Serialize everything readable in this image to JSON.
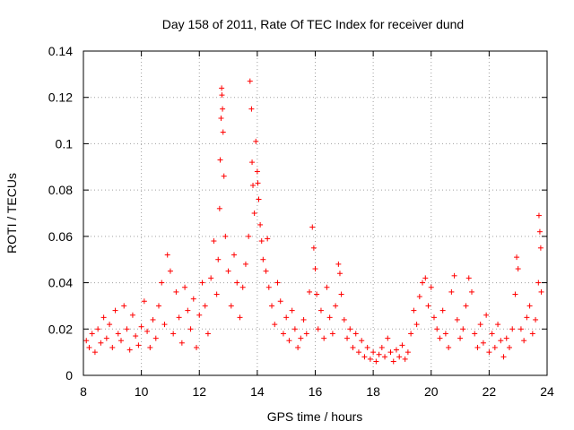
{
  "chart_data": {
    "type": "scatter",
    "title": "Day 158 of 2011, Rate Of TEC Index for receiver dund",
    "xlabel": "GPS time / hours",
    "ylabel": "ROTI / TECUs",
    "xlim": [
      8,
      24
    ],
    "ylim": [
      0,
      0.14
    ],
    "x_ticks": [
      8,
      10,
      12,
      14,
      16,
      18,
      20,
      22,
      24
    ],
    "x_tick_labels": [
      "8",
      "10",
      "12",
      "14",
      "16",
      "18",
      "20",
      "22",
      "24"
    ],
    "y_ticks": [
      0,
      0.02,
      0.04,
      0.06,
      0.08,
      0.1,
      0.12,
      0.14
    ],
    "y_tick_labels": [
      "0",
      "0.02",
      "0.04",
      "0.06",
      "0.08",
      "0.1",
      "0.12",
      "0.14"
    ],
    "grid": true,
    "marker": "plus",
    "color": "#ff0000",
    "series": [
      {
        "name": "ROTI",
        "points": [
          [
            8.1,
            0.015
          ],
          [
            8.2,
            0.012
          ],
          [
            8.3,
            0.018
          ],
          [
            8.4,
            0.01
          ],
          [
            8.5,
            0.02
          ],
          [
            8.6,
            0.014
          ],
          [
            8.7,
            0.025
          ],
          [
            8.8,
            0.016
          ],
          [
            8.9,
            0.022
          ],
          [
            9.0,
            0.012
          ],
          [
            9.1,
            0.028
          ],
          [
            9.2,
            0.018
          ],
          [
            9.3,
            0.015
          ],
          [
            9.4,
            0.03
          ],
          [
            9.5,
            0.02
          ],
          [
            9.6,
            0.011
          ],
          [
            9.7,
            0.026
          ],
          [
            9.8,
            0.017
          ],
          [
            9.9,
            0.013
          ],
          [
            10.0,
            0.021
          ],
          [
            10.1,
            0.032
          ],
          [
            10.2,
            0.019
          ],
          [
            10.3,
            0.012
          ],
          [
            10.4,
            0.024
          ],
          [
            10.5,
            0.016
          ],
          [
            10.6,
            0.03
          ],
          [
            10.7,
            0.04
          ],
          [
            10.8,
            0.022
          ],
          [
            10.9,
            0.052
          ],
          [
            11.0,
            0.045
          ],
          [
            11.1,
            0.018
          ],
          [
            11.2,
            0.036
          ],
          [
            11.3,
            0.025
          ],
          [
            11.4,
            0.014
          ],
          [
            11.5,
            0.038
          ],
          [
            11.6,
            0.028
          ],
          [
            11.7,
            0.02
          ],
          [
            11.8,
            0.033
          ],
          [
            11.9,
            0.012
          ],
          [
            12.0,
            0.026
          ],
          [
            12.1,
            0.04
          ],
          [
            12.2,
            0.03
          ],
          [
            12.3,
            0.018
          ],
          [
            12.4,
            0.042
          ],
          [
            12.5,
            0.058
          ],
          [
            12.6,
            0.035
          ],
          [
            12.65,
            0.05
          ],
          [
            12.7,
            0.072
          ],
          [
            12.72,
            0.093
          ],
          [
            12.75,
            0.111
          ],
          [
            12.77,
            0.124
          ],
          [
            12.78,
            0.121
          ],
          [
            12.8,
            0.115
          ],
          [
            12.82,
            0.105
          ],
          [
            12.85,
            0.086
          ],
          [
            12.9,
            0.06
          ],
          [
            13.0,
            0.045
          ],
          [
            13.1,
            0.03
          ],
          [
            13.2,
            0.052
          ],
          [
            13.3,
            0.04
          ],
          [
            13.4,
            0.025
          ],
          [
            13.5,
            0.038
          ],
          [
            13.6,
            0.048
          ],
          [
            13.7,
            0.06
          ],
          [
            13.75,
            0.127
          ],
          [
            13.8,
            0.115
          ],
          [
            13.82,
            0.092
          ],
          [
            13.85,
            0.082
          ],
          [
            13.9,
            0.07
          ],
          [
            13.95,
            0.101
          ],
          [
            14.0,
            0.088
          ],
          [
            14.02,
            0.083
          ],
          [
            14.05,
            0.076
          ],
          [
            14.1,
            0.065
          ],
          [
            14.15,
            0.058
          ],
          [
            14.2,
            0.05
          ],
          [
            14.3,
            0.045
          ],
          [
            14.35,
            0.059
          ],
          [
            14.4,
            0.038
          ],
          [
            14.5,
            0.03
          ],
          [
            14.6,
            0.022
          ],
          [
            14.7,
            0.04
          ],
          [
            14.8,
            0.032
          ],
          [
            14.9,
            0.018
          ],
          [
            15.0,
            0.025
          ],
          [
            15.1,
            0.015
          ],
          [
            15.2,
            0.028
          ],
          [
            15.3,
            0.02
          ],
          [
            15.4,
            0.012
          ],
          [
            15.5,
            0.016
          ],
          [
            15.6,
            0.024
          ],
          [
            15.7,
            0.018
          ],
          [
            15.8,
            0.036
          ],
          [
            15.9,
            0.064
          ],
          [
            15.95,
            0.055
          ],
          [
            16.0,
            0.046
          ],
          [
            16.05,
            0.035
          ],
          [
            16.1,
            0.02
          ],
          [
            16.2,
            0.028
          ],
          [
            16.3,
            0.016
          ],
          [
            16.4,
            0.038
          ],
          [
            16.5,
            0.025
          ],
          [
            16.6,
            0.018
          ],
          [
            16.7,
            0.03
          ],
          [
            16.8,
            0.048
          ],
          [
            16.85,
            0.044
          ],
          [
            16.9,
            0.035
          ],
          [
            17.0,
            0.024
          ],
          [
            17.1,
            0.016
          ],
          [
            17.2,
            0.02
          ],
          [
            17.3,
            0.012
          ],
          [
            17.4,
            0.018
          ],
          [
            17.5,
            0.01
          ],
          [
            17.6,
            0.015
          ],
          [
            17.7,
            0.008
          ],
          [
            17.8,
            0.012
          ],
          [
            17.9,
            0.007
          ],
          [
            18.0,
            0.01
          ],
          [
            18.1,
            0.006
          ],
          [
            18.2,
            0.009
          ],
          [
            18.3,
            0.012
          ],
          [
            18.4,
            0.008
          ],
          [
            18.5,
            0.016
          ],
          [
            18.6,
            0.01
          ],
          [
            18.7,
            0.006
          ],
          [
            18.8,
            0.011
          ],
          [
            18.9,
            0.008
          ],
          [
            19.0,
            0.013
          ],
          [
            19.1,
            0.007
          ],
          [
            19.2,
            0.01
          ],
          [
            19.3,
            0.018
          ],
          [
            19.4,
            0.028
          ],
          [
            19.5,
            0.022
          ],
          [
            19.6,
            0.034
          ],
          [
            19.7,
            0.04
          ],
          [
            19.8,
            0.042
          ],
          [
            19.9,
            0.03
          ],
          [
            20.0,
            0.038
          ],
          [
            20.1,
            0.025
          ],
          [
            20.2,
            0.02
          ],
          [
            20.3,
            0.016
          ],
          [
            20.4,
            0.028
          ],
          [
            20.5,
            0.018
          ],
          [
            20.6,
            0.012
          ],
          [
            20.7,
            0.036
          ],
          [
            20.8,
            0.043
          ],
          [
            20.9,
            0.024
          ],
          [
            21.0,
            0.016
          ],
          [
            21.1,
            0.02
          ],
          [
            21.2,
            0.03
          ],
          [
            21.3,
            0.042
          ],
          [
            21.4,
            0.036
          ],
          [
            21.5,
            0.018
          ],
          [
            21.6,
            0.012
          ],
          [
            21.7,
            0.022
          ],
          [
            21.8,
            0.014
          ],
          [
            21.9,
            0.026
          ],
          [
            22.0,
            0.01
          ],
          [
            22.1,
            0.018
          ],
          [
            22.2,
            0.012
          ],
          [
            22.3,
            0.022
          ],
          [
            22.4,
            0.015
          ],
          [
            22.5,
            0.008
          ],
          [
            22.6,
            0.016
          ],
          [
            22.7,
            0.012
          ],
          [
            22.8,
            0.02
          ],
          [
            22.9,
            0.035
          ],
          [
            22.95,
            0.051
          ],
          [
            23.0,
            0.046
          ],
          [
            23.1,
            0.02
          ],
          [
            23.2,
            0.015
          ],
          [
            23.3,
            0.025
          ],
          [
            23.4,
            0.03
          ],
          [
            23.5,
            0.018
          ],
          [
            23.6,
            0.024
          ],
          [
            23.7,
            0.04
          ],
          [
            23.72,
            0.069
          ],
          [
            23.75,
            0.062
          ],
          [
            23.78,
            0.055
          ],
          [
            23.8,
            0.036
          ]
        ]
      }
    ]
  }
}
